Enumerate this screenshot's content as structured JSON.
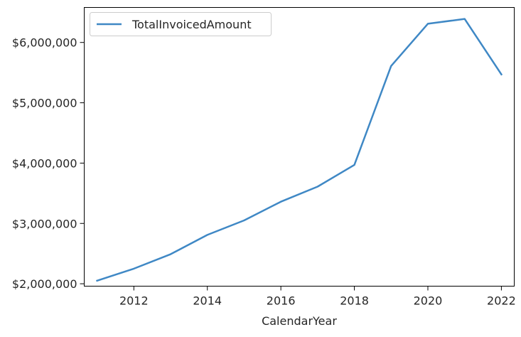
{
  "chart_data": {
    "type": "line",
    "xlabel": "CalendarYear",
    "ylabel": "",
    "title": "",
    "xlim": [
      2010.65,
      2022.35
    ],
    "ylim": [
      1960000,
      6580000
    ],
    "grid": false,
    "legend_position": "top-left",
    "x_ticks": [
      2012,
      2014,
      2016,
      2018,
      2020,
      2022
    ],
    "x_tick_labels": [
      "2012",
      "2014",
      "2016",
      "2018",
      "2020",
      "2022"
    ],
    "y_ticks": [
      2000000,
      3000000,
      4000000,
      5000000,
      6000000
    ],
    "y_tick_labels": [
      "$2,000,000",
      "$3,000,000",
      "$4,000,000",
      "$5,000,000",
      "$6,000,000"
    ],
    "series": [
      {
        "name": "TotalInvoicedAmount",
        "color": "#3f88c5",
        "x": [
          2011,
          2012,
          2013,
          2014,
          2015,
          2016,
          2017,
          2018,
          2019,
          2020,
          2021,
          2022
        ],
        "y": [
          2050000,
          2250000,
          2490000,
          2810000,
          3050000,
          3360000,
          3610000,
          3970000,
          5610000,
          6310000,
          6390000,
          5470000
        ]
      }
    ]
  }
}
